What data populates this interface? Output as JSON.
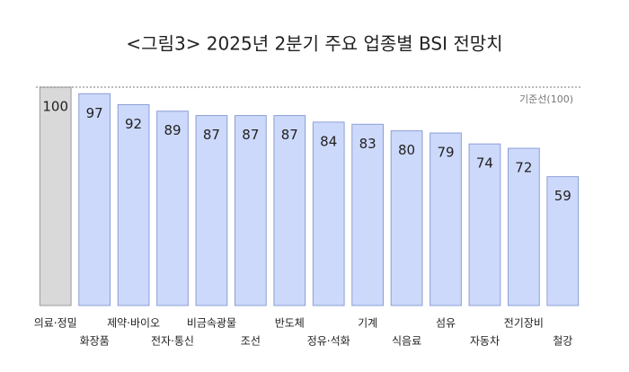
{
  "chart_data": {
    "type": "bar",
    "title": "<그림3> 2025년 2분기 주요 업종별 BSI 전망치",
    "categories": [
      "의료·정밀",
      "화장품",
      "제약·바이오",
      "전자·통신",
      "비금속광물",
      "조선",
      "반도체",
      "정유·석화",
      "기계",
      "식음료",
      "섬유",
      "자동차",
      "전기장비",
      "철강"
    ],
    "values": [
      100,
      97,
      92,
      89,
      87,
      87,
      87,
      84,
      83,
      80,
      79,
      74,
      72,
      59
    ],
    "colors": [
      "#d9d9d9",
      "#cdd9fb",
      "#cdd9fb",
      "#cdd9fb",
      "#cdd9fb",
      "#cdd9fb",
      "#cdd9fb",
      "#cdd9fb",
      "#cdd9fb",
      "#cdd9fb",
      "#cdd9fb",
      "#cdd9fb",
      "#cdd9fb",
      "#cdd9fb"
    ],
    "ylim": [
      0,
      100
    ],
    "reference": {
      "value": 100,
      "label": "기준선(100)"
    }
  }
}
